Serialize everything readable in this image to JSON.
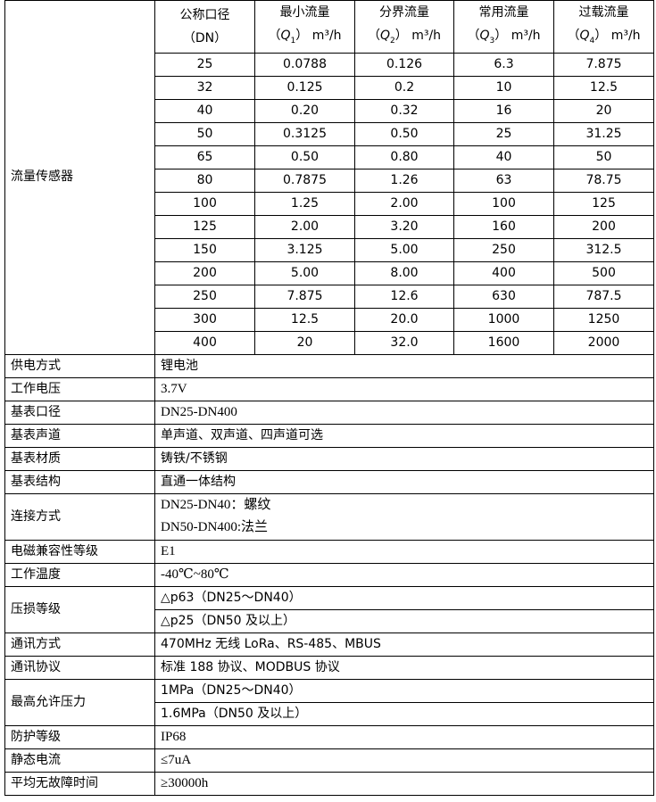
{
  "flow_sensor": {
    "label": "流量传感器",
    "headers": [
      {
        "line1": "公称口径",
        "line2": "（DN）"
      },
      {
        "line1": "最小流量",
        "sym": "Q",
        "sub": "1",
        "unit": "m³/h"
      },
      {
        "line1": "分界流量",
        "sym": "Q",
        "sub": "2",
        "unit": "m³/h"
      },
      {
        "line1": "常用流量",
        "sym": "Q",
        "sub": "3",
        "unit": "m³/h"
      },
      {
        "line1": "过载流量",
        "sym": "Q",
        "sub": "4",
        "unit": "m³/h"
      }
    ],
    "rows": [
      [
        "25",
        "0.0788",
        "0.126",
        "6.3",
        "7.875"
      ],
      [
        "32",
        "0.125",
        "0.2",
        "10",
        "12.5"
      ],
      [
        "40",
        "0.20",
        "0.32",
        "16",
        "20"
      ],
      [
        "50",
        "0.3125",
        "0.50",
        "25",
        "31.25"
      ],
      [
        "65",
        "0.50",
        "0.80",
        "40",
        "50"
      ],
      [
        "80",
        "0.7875",
        "1.26",
        "63",
        "78.75"
      ],
      [
        "100",
        "1.25",
        "2.00",
        "100",
        "125"
      ],
      [
        "125",
        "2.00",
        "3.20",
        "160",
        "200"
      ],
      [
        "150",
        "3.125",
        "5.00",
        "250",
        "312.5"
      ],
      [
        "200",
        "5.00",
        "8.00",
        "400",
        "500"
      ],
      [
        "250",
        "7.875",
        "12.6",
        "630",
        "787.5"
      ],
      [
        "300",
        "12.5",
        "20.0",
        "1000",
        "1250"
      ],
      [
        "400",
        "20",
        "32.0",
        "1600",
        "2000"
      ]
    ]
  },
  "specs": [
    {
      "label": "供电方式",
      "values": [
        "锂电池"
      ],
      "mode": "single"
    },
    {
      "label": "工作电压",
      "values": [
        "3.7V"
      ],
      "mode": "single",
      "serif": true
    },
    {
      "label": "基表口径",
      "values": [
        "DN25-DN400"
      ],
      "mode": "single",
      "serif": true
    },
    {
      "label": "基表声道",
      "values": [
        "单声道、双声道、四声道可选"
      ],
      "mode": "single"
    },
    {
      "label": "基表材质",
      "values": [
        "铸铁/不锈钢"
      ],
      "mode": "single"
    },
    {
      "label": "基表结构",
      "values": [
        "直通一体结构"
      ],
      "mode": "single"
    },
    {
      "label": "连接方式",
      "values": [
        "DN25-DN40：螺纹",
        "DN50-DN400:法兰"
      ],
      "mode": "merged",
      "serif": true
    },
    {
      "label": "电磁兼容性等级",
      "values": [
        "E1"
      ],
      "mode": "single",
      "serif": true
    },
    {
      "label": "工作温度",
      "values": [
        "-40℃~80℃"
      ],
      "mode": "single",
      "serif": true
    },
    {
      "label": "压损等级",
      "values": [
        "△p63（DN25～DN40）",
        "△p25（DN50 及以上）"
      ],
      "mode": "split"
    },
    {
      "label": "通讯方式",
      "values": [
        "470MHz 无线 LoRa、RS-485、MBUS"
      ],
      "mode": "single"
    },
    {
      "label": "通讯协议",
      "values": [
        "标准 188 协议、MODBUS 协议"
      ],
      "mode": "single"
    },
    {
      "label": "最高允许压力",
      "values": [
        "1MPa（DN25～DN40）",
        "1.6MPa（DN50 及以上）"
      ],
      "mode": "split"
    },
    {
      "label": "防护等级",
      "values": [
        "IP68"
      ],
      "mode": "single",
      "serif": true
    },
    {
      "label": "静态电流",
      "values": [
        "≤7uA"
      ],
      "mode": "single",
      "serif": true
    },
    {
      "label": "平均无故障时间",
      "values": [
        "≥30000h"
      ],
      "mode": "single",
      "serif": true
    }
  ]
}
